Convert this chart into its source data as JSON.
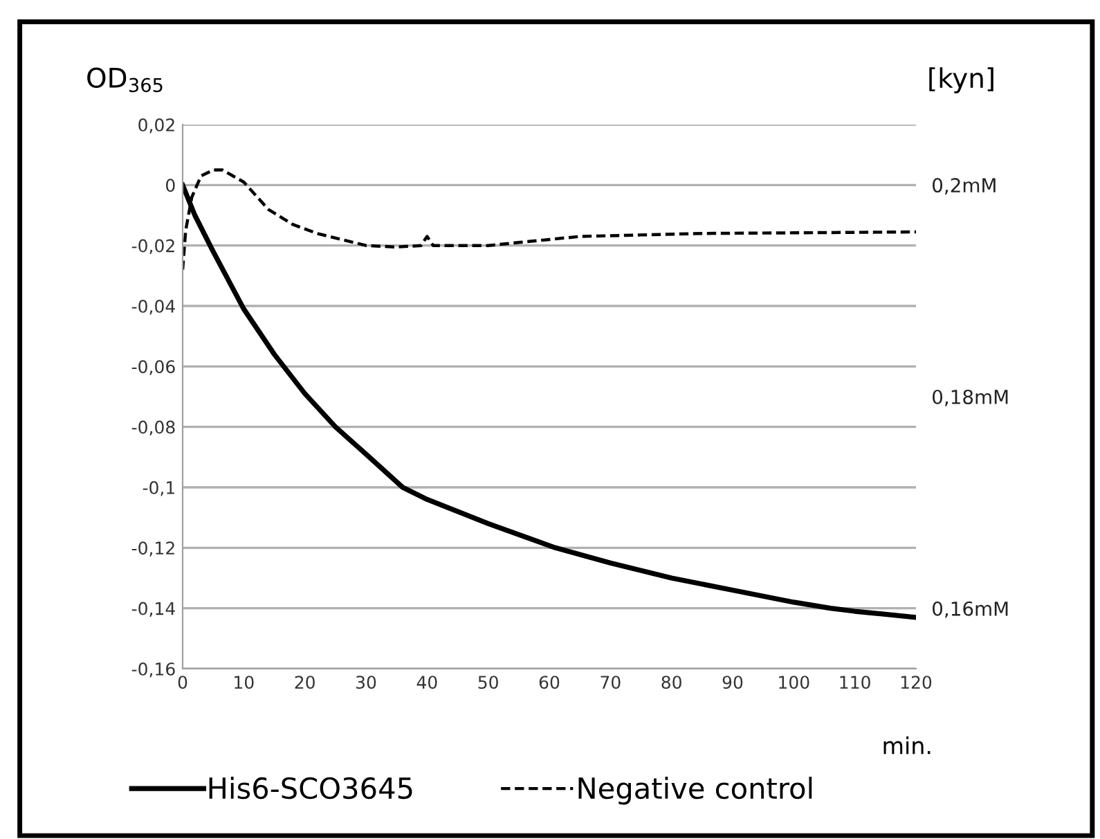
{
  "chart_data": {
    "type": "line",
    "ylabel": "OD$_{365}$",
    "y2label": "[kyn]",
    "xlabel": "min.",
    "xlim": [
      0,
      120
    ],
    "xticks": [
      0,
      10,
      20,
      30,
      40,
      50,
      60,
      70,
      80,
      90,
      100,
      110,
      120
    ],
    "ylim": [
      -0.16,
      0.02
    ],
    "yticks": [
      {
        "value": -0.16,
        "label": "-0,16"
      },
      {
        "value": -0.14,
        "label": "-0,14"
      },
      {
        "value": -0.12,
        "label": "-0,12"
      },
      {
        "value": -0.1,
        "label": "-0,1"
      },
      {
        "value": -0.08,
        "label": "-0,08"
      },
      {
        "value": -0.06,
        "label": "-0,06"
      },
      {
        "value": -0.04,
        "label": "-0,04"
      },
      {
        "value": -0.02,
        "label": "-0,02"
      },
      {
        "value": 0,
        "label": "0"
      },
      {
        "value": 0.02,
        "label": "0,02"
      }
    ],
    "y2lim": [
      0.1543,
      0.2057
    ],
    "y2ticks": [
      {
        "value": 0.16,
        "label": "0,16mM"
      },
      {
        "value": 0.18,
        "label": "0,18mM"
      },
      {
        "value": 0.2,
        "label": "0,2mM"
      }
    ],
    "grid": "y",
    "legend": "bottom",
    "series": [
      {
        "name": "His6-SCO3645",
        "color": "#000000",
        "line_style": "solid",
        "x": [
          0,
          2,
          5,
          10,
          15,
          20,
          25,
          30,
          36,
          40,
          50,
          61,
          70,
          80,
          90,
          100,
          106,
          110,
          120
        ],
        "values": [
          0,
          -0.01,
          -0.022,
          -0.041,
          -0.056,
          -0.069,
          -0.08,
          -0.089,
          -0.1,
          -0.104,
          -0.112,
          -0.12,
          -0.125,
          -0.13,
          -0.134,
          -0.138,
          -0.14,
          -0.141,
          -0.143
        ]
      },
      {
        "name": "Negative control",
        "color": "#000000",
        "line_style": "dashed",
        "x": [
          0,
          0.5,
          1.5,
          3,
          5,
          6.5,
          10,
          14,
          18,
          22,
          26,
          30,
          35,
          39,
          40,
          41,
          45,
          50,
          55,
          60,
          65,
          75,
          85,
          100,
          120
        ],
        "values": [
          -0.028,
          -0.015,
          -0.004,
          0.003,
          0.005,
          0.005,
          0.001,
          -0.008,
          -0.013,
          -0.016,
          -0.018,
          -0.02,
          -0.0205,
          -0.02,
          -0.017,
          -0.02,
          -0.02,
          -0.02,
          -0.019,
          -0.018,
          -0.017,
          -0.0165,
          -0.016,
          -0.0158,
          -0.0155
        ]
      }
    ]
  }
}
